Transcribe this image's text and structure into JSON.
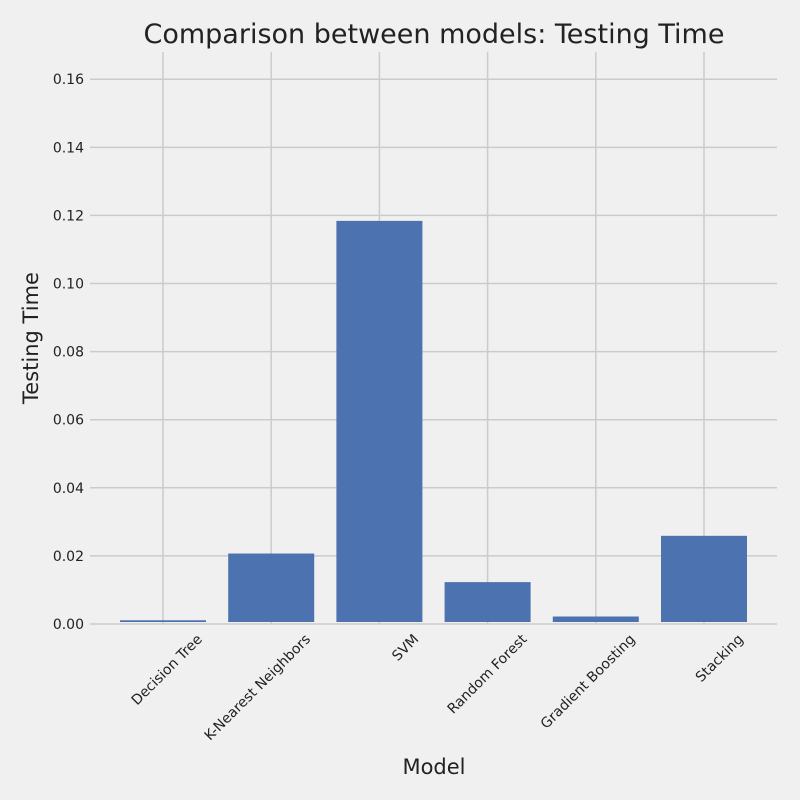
{
  "chart_data": {
    "type": "bar",
    "title": "Comparison between models: Testing Time",
    "xlabel": "Model",
    "ylabel": "Testing Time",
    "categories": [
      "Decision Tree",
      "K-Nearest Neighbors",
      "SVM",
      "Random Forest",
      "Gradient Boosting",
      "Stacking"
    ],
    "values": [
      0.0011,
      0.0207,
      0.1184,
      0.0123,
      0.0022,
      0.0259
    ],
    "ylim": [
      0,
      0.168
    ],
    "yticks": [
      "0.00",
      "0.02",
      "0.04",
      "0.06",
      "0.08",
      "0.10",
      "0.12",
      "0.14",
      "0.16"
    ],
    "grid": true,
    "bar_color": "#4c72b0",
    "background": "#f0f0f0",
    "grid_color": "#cbcbcb"
  }
}
